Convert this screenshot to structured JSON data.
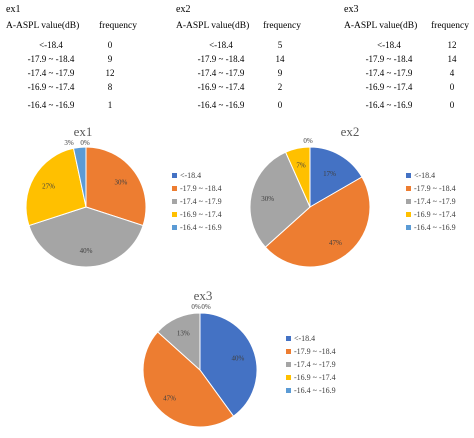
{
  "tables": [
    {
      "title": "ex1",
      "header_range": "A-ASPL value(dB)",
      "header_freq": "frequency",
      "rows": [
        {
          "range": "<-18.4",
          "freq": "0"
        },
        {
          "range": "-17.9 ~ -18.4",
          "freq": "9"
        },
        {
          "range": "-17.4 ~ -17.9",
          "freq": "12"
        },
        {
          "range": "-16.9 ~ -17.4",
          "freq": "8"
        },
        {
          "range": "-16.4 ~ -16.9",
          "freq": "1"
        }
      ]
    },
    {
      "title": "ex2",
      "header_range": "A-ASPL value(dB)",
      "header_freq": "frequency",
      "rows": [
        {
          "range": "<-18.4",
          "freq": "5"
        },
        {
          "range": "-17.9 ~ -18.4",
          "freq": "14"
        },
        {
          "range": "-17.4 ~ -17.9",
          "freq": "9"
        },
        {
          "range": "-16.9 ~ -17.4",
          "freq": "2"
        },
        {
          "range": "-16.4 ~ -16.9",
          "freq": "0"
        }
      ]
    },
    {
      "title": "ex3",
      "header_range": "A-ASPL value(dB)",
      "header_freq": "frequency",
      "rows": [
        {
          "range": "<-18.4",
          "freq": "12"
        },
        {
          "range": "-17.9 ~ -18.4",
          "freq": "14"
        },
        {
          "range": "-17.4 ~ -17.9",
          "freq": "4"
        },
        {
          "range": "-16.9 ~ -17.4",
          "freq": "0"
        },
        {
          "range": "-16.4 ~ -16.9",
          "freq": "0"
        }
      ]
    }
  ],
  "chart_data": [
    {
      "type": "pie",
      "title": "ex1",
      "categories": [
        "<-18.4",
        "-17.9 ~ -18.4",
        "-17.4 ~ -17.9",
        "-16.9 ~ -17.4",
        "-16.4 ~ -16.9"
      ],
      "values": [
        0,
        9,
        12,
        8,
        1
      ],
      "data_labels": [
        "0%",
        "30%",
        "40%",
        "27%",
        "3%"
      ],
      "colors": [
        "#4472C4",
        "#ED7D31",
        "#A5A5A5",
        "#FFC000",
        "#5B9BD5"
      ],
      "legend": "right"
    },
    {
      "type": "pie",
      "title": "ex2",
      "categories": [
        "<-18.4",
        "-17.9 ~ -18.4",
        "-17.4 ~ -17.9",
        "-16.9 ~ -17.4",
        "-16.4 ~ -16.9"
      ],
      "values": [
        5,
        14,
        9,
        2,
        0
      ],
      "data_labels": [
        "17%",
        "47%",
        "30%",
        "7%",
        "0%"
      ],
      "colors": [
        "#4472C4",
        "#ED7D31",
        "#A5A5A5",
        "#FFC000",
        "#5B9BD5"
      ],
      "legend": "right"
    },
    {
      "type": "pie",
      "title": "ex3",
      "categories": [
        "<-18.4",
        "-17.9 ~ -18.4",
        "-17.4 ~ -17.9",
        "-16.9 ~ -17.4",
        "-16.4 ~ -16.9"
      ],
      "values": [
        12,
        14,
        4,
        0,
        0
      ],
      "data_labels": [
        "40%",
        "47%",
        "13%",
        "0%",
        "0%"
      ],
      "colors": [
        "#4472C4",
        "#ED7D31",
        "#A5A5A5",
        "#FFC000",
        "#5B9BD5"
      ],
      "legend": "right"
    }
  ]
}
